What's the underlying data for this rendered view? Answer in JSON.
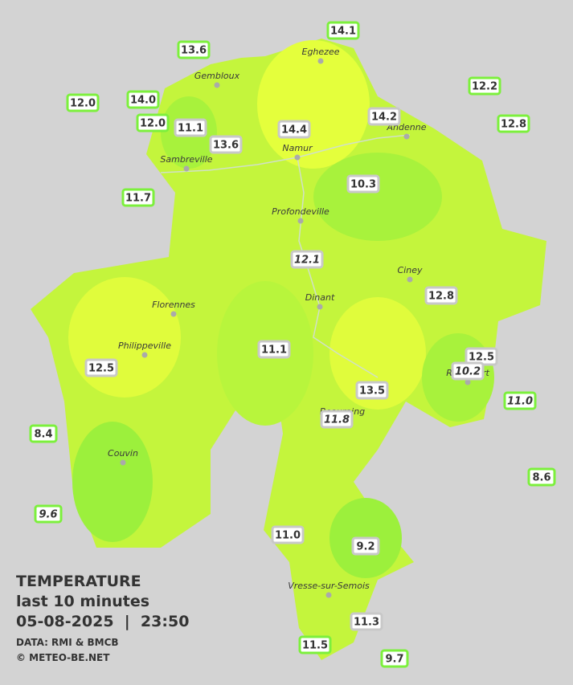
{
  "header": {
    "title": "TEMPERATURE",
    "subtitle": "last 10 minutes",
    "datetime": "05-08-2025  |  23:50",
    "source": "DATA: RMI & BMCB",
    "credit": "© METEO-BE.NET"
  },
  "towns": [
    "Eghezee",
    "Gembloux",
    "Andenne",
    "Namur",
    "Sambreville",
    "Profondeville",
    "Ciney",
    "Dinant",
    "Florennes",
    "Philippeville",
    "Beauraing",
    "Rochefort",
    "Couvin",
    "Vresse-sur-Semois"
  ],
  "stations": [
    {
      "label": "14.1",
      "border": "#7cf03c",
      "italic": false
    },
    {
      "label": "13.6",
      "border": "#7cf03c",
      "italic": false
    },
    {
      "label": "12.2",
      "border": "#7cf03c",
      "italic": false
    },
    {
      "label": "12.0",
      "border": "#7cf03c",
      "italic": false
    },
    {
      "label": "14.0",
      "border": "#7cf03c",
      "italic": false
    },
    {
      "label": "12.0",
      "border": "#7cf03c",
      "italic": false
    },
    {
      "label": "11.1",
      "border": "#c8c8c8",
      "italic": false
    },
    {
      "label": "14.2",
      "border": "#c8c8c8",
      "italic": false
    },
    {
      "label": "12.8",
      "border": "#7cf03c",
      "italic": false
    },
    {
      "label": "14.4",
      "border": "#c8c8c8",
      "italic": false
    },
    {
      "label": "13.6",
      "border": "#c8c8c8",
      "italic": false
    },
    {
      "label": "10.3",
      "border": "#c8c8c8",
      "italic": false
    },
    {
      "label": "11.7",
      "border": "#7cf03c",
      "italic": false
    },
    {
      "label": "12.1",
      "border": "#c8c8c8",
      "italic": true
    },
    {
      "label": "12.8",
      "border": "#c8c8c8",
      "italic": false
    },
    {
      "label": "11.1",
      "border": "#c8c8c8",
      "italic": false
    },
    {
      "label": "12.5",
      "border": "#c8c8c8",
      "italic": false
    },
    {
      "label": "10.2",
      "border": "#c8c8c8",
      "italic": true
    },
    {
      "label": "12.5",
      "border": "#c8c8c8",
      "italic": false
    },
    {
      "label": "13.5",
      "border": "#c8c8c8",
      "italic": false
    },
    {
      "label": "11.0",
      "border": "#7cf03c",
      "italic": true
    },
    {
      "label": "11.8",
      "border": "#c8c8c8",
      "italic": true
    },
    {
      "label": "8.4",
      "border": "#7cf03c",
      "italic": false
    },
    {
      "label": "8.6",
      "border": "#7cf03c",
      "italic": false
    },
    {
      "label": "9.6",
      "border": "#7cf03c",
      "italic": true
    },
    {
      "label": "11.0",
      "border": "#c8c8c8",
      "italic": false
    },
    {
      "label": "9.2",
      "border": "#c8c8c8",
      "italic": false
    },
    {
      "label": "11.3",
      "border": "#c8c8c8",
      "italic": false
    },
    {
      "label": "11.5",
      "border": "#7cf03c",
      "italic": false
    },
    {
      "label": "9.7",
      "border": "#7cf03c",
      "italic": false
    }
  ]
}
